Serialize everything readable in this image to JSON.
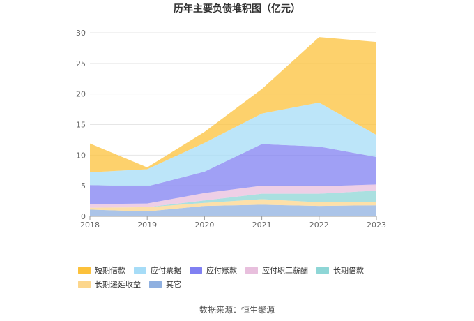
{
  "title": "历年主要负债堆积图（亿元）",
  "source": "数据来源：恒生聚源",
  "chart_data": {
    "type": "area",
    "stacked": true,
    "x": [
      "2018",
      "2019",
      "2020",
      "2021",
      "2022",
      "2023"
    ],
    "ylim": [
      0,
      30
    ],
    "yticks": [
      "0",
      "5",
      "10",
      "15",
      "20",
      "25",
      "30"
    ],
    "grid": true,
    "legend_position": "bottom",
    "series": [
      {
        "name": "短期借款",
        "color": "#fcc13b",
        "values": [
          4.7,
          0.3,
          1.8,
          4.0,
          10.7,
          15.2
        ]
      },
      {
        "name": "应付票据",
        "color": "#a6dcf7",
        "values": [
          2.1,
          2.8,
          4.7,
          5.0,
          7.2,
          3.6
        ]
      },
      {
        "name": "应付账款",
        "color": "#8080f2",
        "values": [
          3.1,
          2.8,
          3.5,
          6.8,
          6.5,
          4.5
        ]
      },
      {
        "name": "应付职工薪酬",
        "color": "#e8bfdd",
        "values": [
          0.6,
          0.6,
          1.2,
          1.3,
          1.2,
          1.0
        ]
      },
      {
        "name": "长期借款",
        "color": "#8ed6d6",
        "values": [
          0.0,
          0.0,
          0.4,
          0.9,
          1.4,
          1.8
        ]
      },
      {
        "name": "长期递延收益",
        "color": "#fcd68c",
        "values": [
          0.3,
          0.7,
          0.5,
          0.9,
          0.6,
          0.6
        ]
      },
      {
        "name": "其它",
        "color": "#8fb0e0",
        "values": [
          1.1,
          0.8,
          1.7,
          1.9,
          1.7,
          1.8
        ]
      }
    ]
  }
}
